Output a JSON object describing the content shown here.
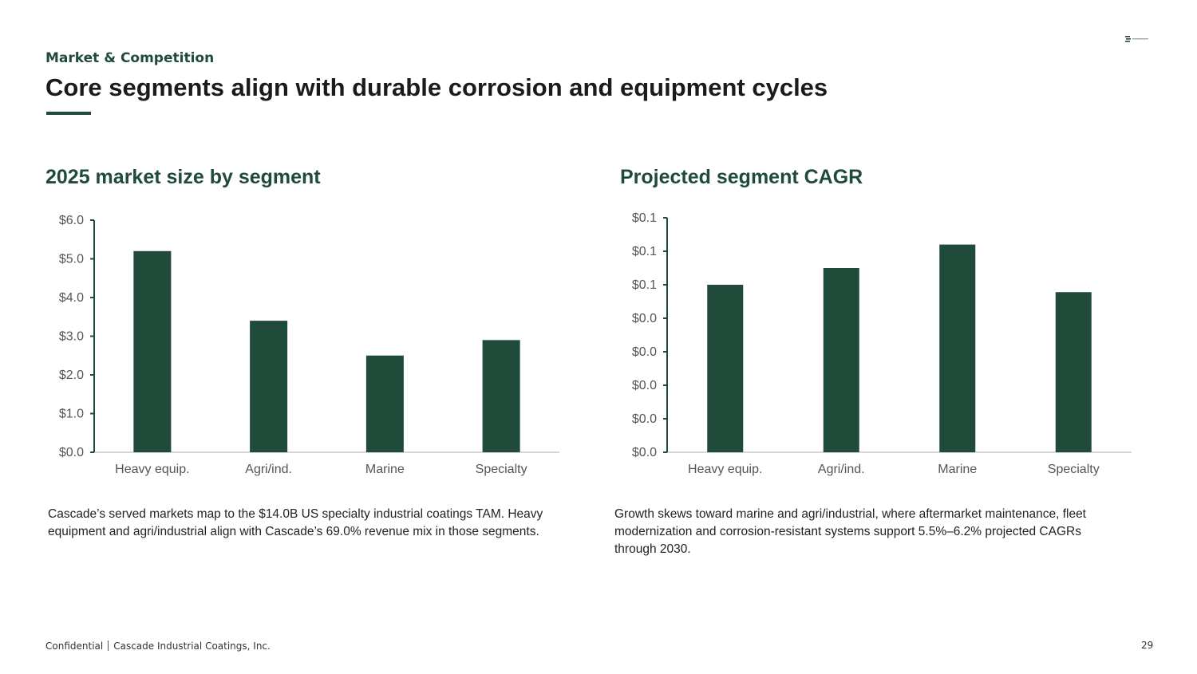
{
  "header": {
    "section": "Market & Competition",
    "title": "Core segments align with durable corrosion and equipment cycles"
  },
  "logo": {
    "icon": "cascade-logo-icon"
  },
  "colors": {
    "accent": "#204a3a",
    "bar": "#204a3a",
    "axis": "#204a3a",
    "baseline": "#c8c8c8"
  },
  "chart_data": [
    {
      "type": "bar",
      "title": "2025 market size by segment",
      "categories": [
        "Heavy equip.",
        "Agri/ind.",
        "Marine",
        "Specialty"
      ],
      "values": [
        5.2,
        3.4,
        2.5,
        2.9
      ],
      "ylim": [
        0,
        6
      ],
      "yticks": [
        0,
        1,
        2,
        3,
        4,
        5,
        6
      ],
      "ytick_labels": [
        "$0.0",
        "$1.0",
        "$2.0",
        "$3.0",
        "$4.0",
        "$5.0",
        "$6.0"
      ],
      "xlabel": "",
      "ylabel": "",
      "grid": false
    },
    {
      "type": "bar",
      "title": "Projected segment CAGR",
      "categories": [
        "Heavy equip.",
        "Agri/ind.",
        "Marine",
        "Specialty"
      ],
      "values": [
        0.05,
        0.055,
        0.062,
        0.0478
      ],
      "ylim": [
        0,
        0.07
      ],
      "yticks": [
        0,
        0.01,
        0.02,
        0.03,
        0.04,
        0.05,
        0.06,
        0.07
      ],
      "ytick_labels": [
        "$0.0",
        "$0.0",
        "$0.0",
        "$0.0",
        "$0.0",
        "$0.1",
        "$0.1",
        "$0.1"
      ],
      "xlabel": "",
      "ylabel": "",
      "grid": false
    }
  ],
  "captions": {
    "left": "Cascade’s served markets map to the $14.0B US specialty industrial coatings TAM. Heavy equipment and agri/industrial align with Cascade’s 69.0% revenue mix in those segments.",
    "right": "Growth skews toward marine and agri/industrial, where aftermarket maintenance, fleet modernization and corrosion-resistant systems support 5.5%–6.2% projected CAGRs through 2030."
  },
  "footer": {
    "confidential": "Confidential",
    "company": "Cascade Industrial Coatings, Inc.",
    "page": "29"
  }
}
